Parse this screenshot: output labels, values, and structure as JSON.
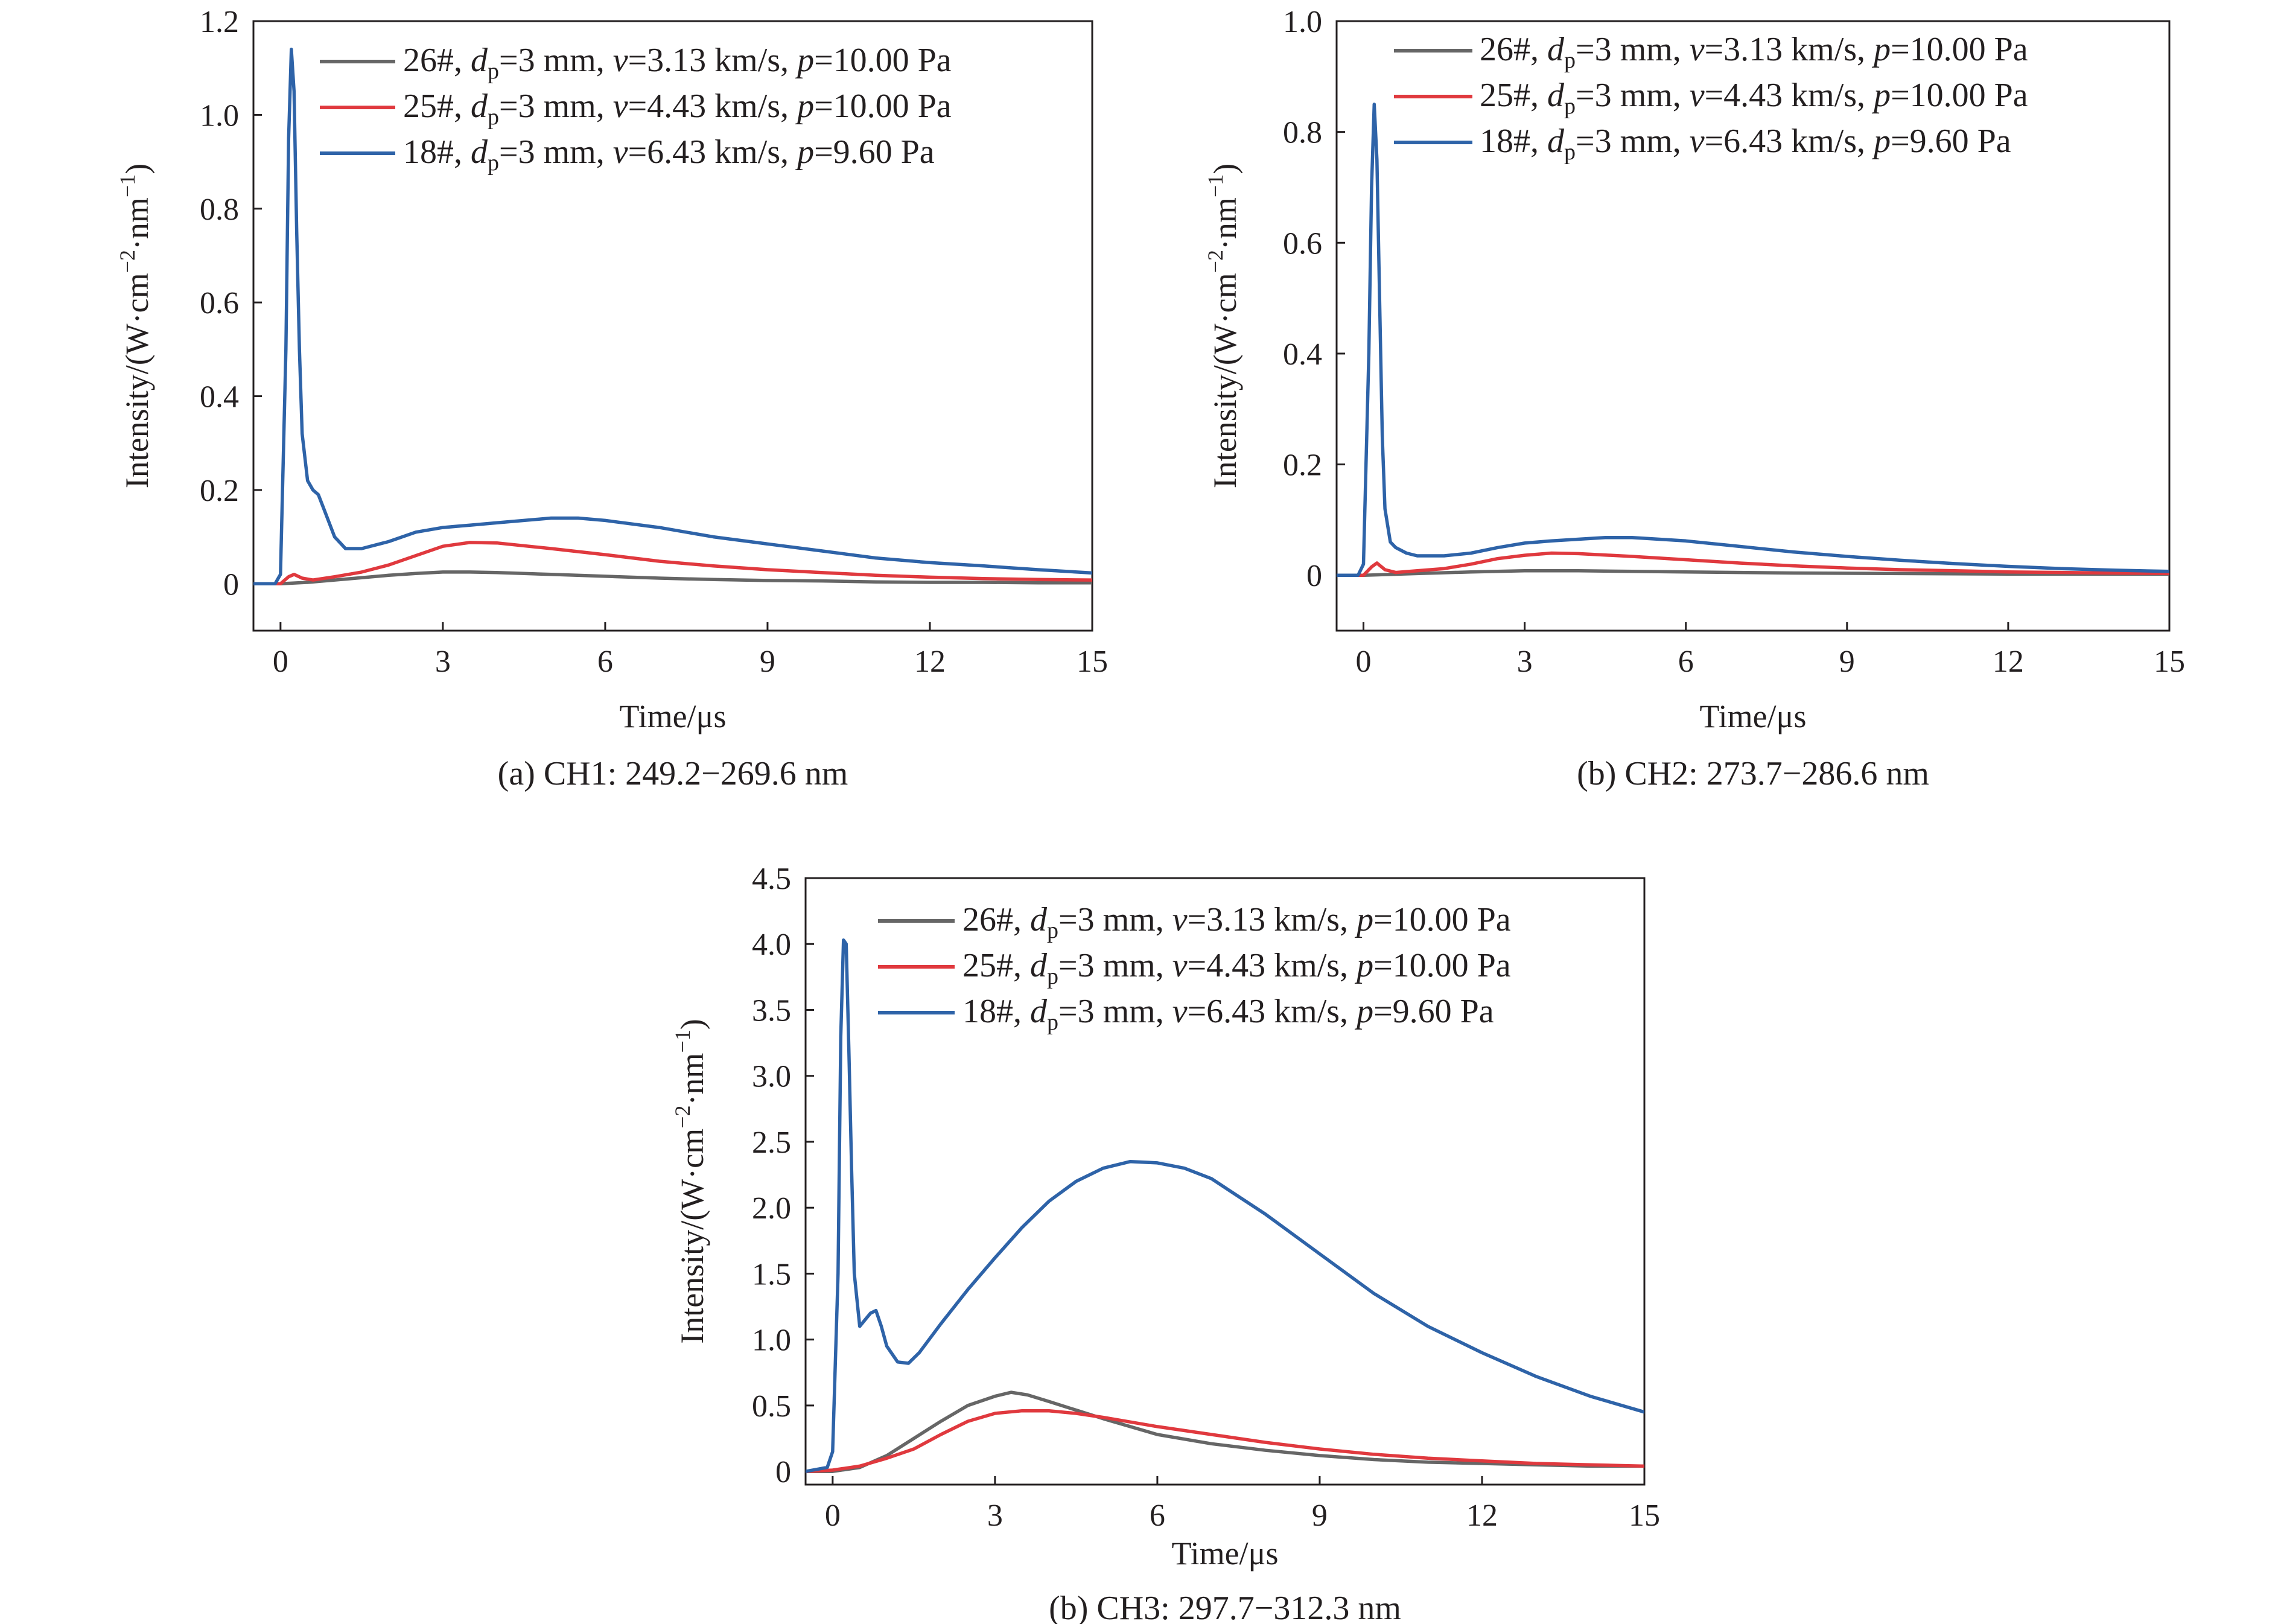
{
  "colors": {
    "s26": "#666666",
    "s25": "#e0393e",
    "s18": "#2e63a8"
  },
  "chart_data": [
    {
      "type": "line",
      "caption": "(a) CH1: 249.2−269.6 nm",
      "xlabel": "Time/μs",
      "ylabel": "Intensity/(W·cm⁻²·nm⁻¹)",
      "xlim": [
        -0.5,
        15
      ],
      "ylim": [
        -0.1,
        1.2
      ],
      "xticks": [
        0,
        3,
        6,
        9,
        12,
        15
      ],
      "xtick_labels": [
        "0",
        "3",
        "6",
        "9",
        "12",
        "15"
      ],
      "yticks": [
        0,
        0.2,
        0.4,
        0.6,
        0.8,
        1.0,
        1.2
      ],
      "ytick_labels": [
        "0",
        "0.2",
        "0.4",
        "0.6",
        "0.8",
        "1.0",
        "1.2"
      ],
      "legend_position": "top-right",
      "series": [
        {
          "name": "26#, dp=3 mm, v=3.13 km/s, p=10.00 Pa",
          "color_key": "s26",
          "x": [
            -0.5,
            0,
            0.5,
            1,
            1.5,
            2,
            2.5,
            3,
            3.5,
            4,
            5,
            6,
            7,
            8,
            9,
            10,
            11,
            12,
            13,
            14,
            15
          ],
          "y": [
            0,
            0,
            0.003,
            0.008,
            0.013,
            0.018,
            0.022,
            0.025,
            0.025,
            0.024,
            0.02,
            0.016,
            0.012,
            0.009,
            0.007,
            0.006,
            0.004,
            0.003,
            0.003,
            0.002,
            0.002
          ]
        },
        {
          "name": "25#, dp=3 mm, v=4.43 km/s, p=10.00 Pa",
          "color_key": "s25",
          "x": [
            -0.5,
            0,
            0.15,
            0.25,
            0.4,
            0.6,
            1,
            1.5,
            2,
            2.5,
            3,
            3.5,
            4,
            5,
            6,
            7,
            8,
            9,
            10,
            11,
            12,
            13,
            14,
            15
          ],
          "y": [
            0,
            0,
            0.015,
            0.02,
            0.012,
            0.008,
            0.015,
            0.025,
            0.04,
            0.06,
            0.08,
            0.088,
            0.087,
            0.075,
            0.062,
            0.048,
            0.038,
            0.03,
            0.024,
            0.018,
            0.014,
            0.011,
            0.009,
            0.008
          ]
        },
        {
          "name": "18#, dp=3 mm, v=6.43 km/s, p=9.60 Pa",
          "color_key": "s18",
          "x": [
            -0.5,
            -0.1,
            0.0,
            0.1,
            0.15,
            0.2,
            0.25,
            0.3,
            0.35,
            0.4,
            0.5,
            0.6,
            0.7,
            0.8,
            1.0,
            1.2,
            1.5,
            2,
            2.5,
            3,
            3.5,
            4,
            5,
            5.5,
            6,
            7,
            8,
            9,
            10,
            11,
            12,
            13,
            14,
            15
          ],
          "y": [
            0,
            0,
            0.02,
            0.5,
            0.95,
            1.14,
            1.05,
            0.75,
            0.5,
            0.32,
            0.22,
            0.2,
            0.19,
            0.16,
            0.1,
            0.075,
            0.075,
            0.09,
            0.11,
            0.12,
            0.125,
            0.13,
            0.14,
            0.14,
            0.135,
            0.12,
            0.1,
            0.085,
            0.07,
            0.055,
            0.045,
            0.038,
            0.03,
            0.023
          ]
        }
      ],
      "legend_entries": [
        {
          "text": "26#, dp=3 mm, v=3.13 km/s, p=10.00 Pa",
          "color_key": "s26"
        },
        {
          "text": "25#, dp=3 mm, v=4.43 km/s, p=10.00 Pa",
          "color_key": "s25"
        },
        {
          "text": "18#, dp=3 mm, v=6.43 km/s, p=9.60 Pa",
          "color_key": "s18"
        }
      ]
    },
    {
      "type": "line",
      "caption": "(b) CH2: 273.7−286.6 nm",
      "xlabel": "Time/μs",
      "ylabel": "Intensity/(W·cm⁻²·nm⁻¹)",
      "xlim": [
        -0.5,
        15
      ],
      "ylim": [
        -0.1,
        1.0
      ],
      "xticks": [
        0,
        3,
        6,
        9,
        12,
        15
      ],
      "xtick_labels": [
        "0",
        "3",
        "6",
        "9",
        "12",
        "15"
      ],
      "yticks": [
        0,
        0.2,
        0.4,
        0.6,
        0.8,
        1.0
      ],
      "ytick_labels": [
        "0",
        "0.2",
        "0.4",
        "0.6",
        "0.8",
        "1.0"
      ],
      "legend_position": "top-right",
      "series": [
        {
          "name": "26#, dp=3 mm, v=3.13 km/s, p=10.00 Pa",
          "color_key": "s26",
          "x": [
            -0.5,
            0,
            1,
            2,
            3,
            4,
            5,
            6,
            8,
            10,
            12,
            15
          ],
          "y": [
            0,
            0,
            0.003,
            0.006,
            0.008,
            0.008,
            0.007,
            0.006,
            0.004,
            0.003,
            0.002,
            0.002
          ]
        },
        {
          "name": "25#, dp=3 mm, v=4.43 km/s, p=10.00 Pa",
          "color_key": "s25",
          "x": [
            -0.5,
            0,
            0.15,
            0.25,
            0.4,
            0.6,
            1,
            1.5,
            2,
            2.5,
            3,
            3.5,
            4,
            5,
            6,
            7,
            8,
            9,
            10,
            11,
            12,
            13,
            14,
            15
          ],
          "y": [
            0,
            0,
            0.015,
            0.022,
            0.01,
            0.005,
            0.008,
            0.012,
            0.02,
            0.03,
            0.036,
            0.04,
            0.039,
            0.034,
            0.028,
            0.022,
            0.017,
            0.013,
            0.01,
            0.008,
            0.006,
            0.005,
            0.004,
            0.003
          ]
        },
        {
          "name": "18#, dp=3 mm, v=6.43 km/s, p=9.60 Pa",
          "color_key": "s18",
          "x": [
            -0.5,
            -0.1,
            0.0,
            0.1,
            0.15,
            0.2,
            0.25,
            0.3,
            0.35,
            0.4,
            0.5,
            0.6,
            0.8,
            1.0,
            1.5,
            2,
            2.5,
            3,
            3.5,
            4,
            4.5,
            5,
            6,
            7,
            8,
            9,
            10,
            11,
            12,
            13,
            14,
            15
          ],
          "y": [
            0,
            0,
            0.02,
            0.4,
            0.7,
            0.85,
            0.75,
            0.5,
            0.25,
            0.12,
            0.06,
            0.05,
            0.04,
            0.035,
            0.035,
            0.04,
            0.05,
            0.058,
            0.062,
            0.065,
            0.068,
            0.068,
            0.062,
            0.052,
            0.042,
            0.034,
            0.027,
            0.021,
            0.016,
            0.012,
            0.009,
            0.007
          ]
        }
      ],
      "legend_entries": [
        {
          "text": "26#, dp=3 mm, v=3.13 km/s, p=10.00 Pa",
          "color_key": "s26"
        },
        {
          "text": "25#, dp=3 mm, v=4.43 km/s, p=10.00 Pa",
          "color_key": "s25"
        },
        {
          "text": "18#, dp=3 mm, v=6.43 km/s, p=9.60 Pa",
          "color_key": "s18"
        }
      ]
    },
    {
      "type": "line",
      "caption": "(b) CH3: 297.7−312.3 nm",
      "xlabel": "Time/μs",
      "ylabel": "Intensity/(W·cm⁻²·nm⁻¹)",
      "xlim": [
        -0.5,
        15
      ],
      "ylim": [
        -0.1,
        4.5
      ],
      "xticks": [
        0,
        3,
        6,
        9,
        12,
        15
      ],
      "xtick_labels": [
        "0",
        "3",
        "6",
        "9",
        "12",
        "15"
      ],
      "yticks": [
        0,
        0.5,
        1.0,
        1.5,
        2.0,
        2.5,
        3.0,
        3.5,
        4.0,
        4.5
      ],
      "ytick_labels": [
        "0",
        "0.5",
        "1.0",
        "1.5",
        "2.0",
        "2.5",
        "3.0",
        "3.5",
        "4.0",
        "4.5"
      ],
      "legend_position": "top-right",
      "series": [
        {
          "name": "26#, dp=3 mm, v=3.13 km/s, p=10.00 Pa",
          "color_key": "s26",
          "x": [
            -0.5,
            0,
            0.5,
            1,
            1.5,
            2,
            2.5,
            3,
            3.3,
            3.6,
            4,
            5,
            6,
            7,
            8,
            9,
            10,
            11,
            12,
            13,
            14,
            15
          ],
          "y": [
            0,
            0,
            0.03,
            0.12,
            0.25,
            0.38,
            0.5,
            0.57,
            0.6,
            0.58,
            0.53,
            0.4,
            0.28,
            0.21,
            0.16,
            0.12,
            0.09,
            0.07,
            0.06,
            0.05,
            0.04,
            0.04
          ]
        },
        {
          "name": "25#, dp=3 mm, v=4.43 km/s, p=10.00 Pa",
          "color_key": "s25",
          "x": [
            -0.5,
            0,
            0.5,
            1,
            1.5,
            2,
            2.5,
            3,
            3.5,
            4,
            4.5,
            5,
            6,
            7,
            8,
            9,
            10,
            11,
            12,
            13,
            14,
            15
          ],
          "y": [
            0,
            0.01,
            0.04,
            0.1,
            0.17,
            0.28,
            0.38,
            0.44,
            0.46,
            0.46,
            0.44,
            0.41,
            0.34,
            0.28,
            0.22,
            0.17,
            0.13,
            0.1,
            0.08,
            0.06,
            0.05,
            0.04
          ]
        },
        {
          "name": "18#, dp=3 mm, v=6.43 km/s, p=9.60 Pa",
          "color_key": "s18",
          "x": [
            -0.5,
            -0.1,
            0.0,
            0.1,
            0.15,
            0.2,
            0.25,
            0.3,
            0.35,
            0.4,
            0.5,
            0.6,
            0.7,
            0.8,
            0.9,
            1.0,
            1.2,
            1.4,
            1.6,
            2,
            2.5,
            3,
            3.5,
            4,
            4.5,
            5,
            5.5,
            6,
            6.5,
            7,
            8,
            9,
            10,
            11,
            12,
            13,
            14,
            15
          ],
          "y": [
            0,
            0.03,
            0.15,
            1.5,
            3.3,
            4.03,
            4.0,
            3.2,
            2.3,
            1.5,
            1.1,
            1.15,
            1.2,
            1.22,
            1.1,
            0.95,
            0.83,
            0.82,
            0.9,
            1.12,
            1.38,
            1.62,
            1.85,
            2.05,
            2.2,
            2.3,
            2.35,
            2.34,
            2.3,
            2.22,
            1.95,
            1.65,
            1.35,
            1.1,
            0.9,
            0.72,
            0.57,
            0.45
          ]
        }
      ],
      "legend_entries": [
        {
          "text": "26#, dp=3 mm, v=3.13 km/s, p=10.00 Pa",
          "color_key": "s26"
        },
        {
          "text": "25#, dp=3 mm, v=4.43 km/s, p=10.00 Pa",
          "color_key": "s25"
        },
        {
          "text": "18#, dp=3 mm, v=6.43 km/s, p=9.60 Pa",
          "color_key": "s18"
        }
      ]
    }
  ]
}
